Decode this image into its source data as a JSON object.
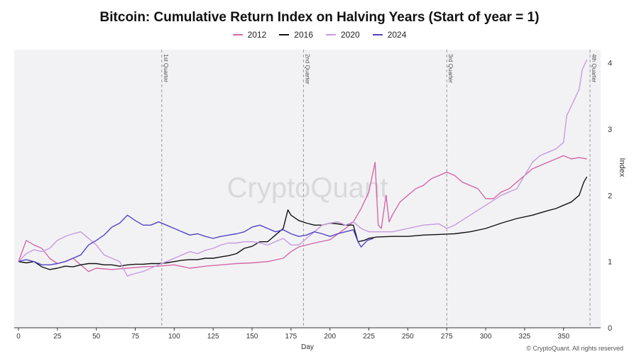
{
  "chart_data": {
    "type": "line",
    "title": "Bitcoin: Cumulative Return Index on Halving Years (Start of year = 1)",
    "xlabel": "Day",
    "ylabel": "Index",
    "xlim": [
      0,
      372
    ],
    "ylim": [
      0,
      4.2
    ],
    "x_ticks": [
      "0",
      "25",
      "50",
      "75",
      "100",
      "125",
      "150",
      "175",
      "200",
      "225",
      "250",
      "275",
      "300",
      "325",
      "350"
    ],
    "y_ticks": [
      "0",
      "1",
      "2",
      "3",
      "4"
    ],
    "legend_position": "top-center",
    "watermark": "CryptoQuant",
    "copyright": "© CryptoQuant. All rights reserved",
    "annotations": [
      {
        "label": "1st Quarter",
        "x": 92
      },
      {
        "label": "2nd Quarter",
        "x": 183
      },
      {
        "label": "3rd Quarter",
        "x": 275
      },
      {
        "label": "4th Quarter",
        "x": 367
      }
    ],
    "series": [
      {
        "name": "2012",
        "color": "#d36aa8",
        "points": [
          [
            0,
            1.0
          ],
          [
            5,
            1.32
          ],
          [
            10,
            1.25
          ],
          [
            15,
            1.2
          ],
          [
            20,
            1.05
          ],
          [
            25,
            0.97
          ],
          [
            30,
            1.0
          ],
          [
            35,
            1.05
          ],
          [
            40,
            0.95
          ],
          [
            45,
            0.85
          ],
          [
            50,
            0.9
          ],
          [
            60,
            0.88
          ],
          [
            70,
            0.9
          ],
          [
            80,
            0.92
          ],
          [
            90,
            0.93
          ],
          [
            100,
            0.95
          ],
          [
            110,
            0.9
          ],
          [
            120,
            0.93
          ],
          [
            130,
            0.95
          ],
          [
            140,
            0.97
          ],
          [
            150,
            0.98
          ],
          [
            160,
            1.0
          ],
          [
            170,
            1.05
          ],
          [
            175,
            1.15
          ],
          [
            180,
            1.22
          ],
          [
            190,
            1.28
          ],
          [
            200,
            1.33
          ],
          [
            210,
            1.5
          ],
          [
            215,
            1.6
          ],
          [
            220,
            1.8
          ],
          [
            225,
            2.05
          ],
          [
            229,
            2.5
          ],
          [
            231,
            1.55
          ],
          [
            233,
            1.5
          ],
          [
            236,
            2.0
          ],
          [
            238,
            1.6
          ],
          [
            240,
            1.7
          ],
          [
            245,
            1.9
          ],
          [
            250,
            2.0
          ],
          [
            255,
            2.1
          ],
          [
            260,
            2.15
          ],
          [
            265,
            2.25
          ],
          [
            270,
            2.3
          ],
          [
            275,
            2.35
          ],
          [
            280,
            2.3
          ],
          [
            285,
            2.2
          ],
          [
            290,
            2.15
          ],
          [
            295,
            2.1
          ],
          [
            300,
            1.95
          ],
          [
            305,
            1.95
          ],
          [
            310,
            2.05
          ],
          [
            315,
            2.1
          ],
          [
            320,
            2.2
          ],
          [
            325,
            2.3
          ],
          [
            330,
            2.4
          ],
          [
            335,
            2.45
          ],
          [
            340,
            2.5
          ],
          [
            345,
            2.55
          ],
          [
            350,
            2.6
          ],
          [
            355,
            2.55
          ],
          [
            360,
            2.57
          ],
          [
            365,
            2.55
          ]
        ]
      },
      {
        "name": "2016",
        "color": "#111111",
        "points": [
          [
            0,
            1.0
          ],
          [
            5,
            0.98
          ],
          [
            10,
            1.0
          ],
          [
            15,
            0.92
          ],
          [
            20,
            0.88
          ],
          [
            25,
            0.9
          ],
          [
            30,
            0.93
          ],
          [
            35,
            0.92
          ],
          [
            40,
            0.95
          ],
          [
            45,
            0.97
          ],
          [
            50,
            0.97
          ],
          [
            55,
            0.95
          ],
          [
            60,
            0.95
          ],
          [
            65,
            0.93
          ],
          [
            70,
            0.95
          ],
          [
            75,
            0.96
          ],
          [
            80,
            0.96
          ],
          [
            85,
            0.97
          ],
          [
            90,
            0.97
          ],
          [
            95,
            0.98
          ],
          [
            100,
            1.0
          ],
          [
            105,
            1.02
          ],
          [
            110,
            1.03
          ],
          [
            115,
            1.03
          ],
          [
            120,
            1.05
          ],
          [
            125,
            1.05
          ],
          [
            130,
            1.07
          ],
          [
            135,
            1.09
          ],
          [
            140,
            1.12
          ],
          [
            145,
            1.2
          ],
          [
            150,
            1.23
          ],
          [
            155,
            1.3
          ],
          [
            160,
            1.3
          ],
          [
            165,
            1.4
          ],
          [
            170,
            1.5
          ],
          [
            173,
            1.78
          ],
          [
            175,
            1.7
          ],
          [
            180,
            1.62
          ],
          [
            185,
            1.58
          ],
          [
            190,
            1.55
          ],
          [
            195,
            1.55
          ],
          [
            200,
            1.58
          ],
          [
            205,
            1.57
          ],
          [
            210,
            1.55
          ],
          [
            215,
            1.55
          ],
          [
            218,
            1.3
          ],
          [
            222,
            1.32
          ],
          [
            225,
            1.35
          ],
          [
            230,
            1.37
          ],
          [
            240,
            1.38
          ],
          [
            250,
            1.38
          ],
          [
            260,
            1.4
          ],
          [
            270,
            1.41
          ],
          [
            280,
            1.42
          ],
          [
            290,
            1.45
          ],
          [
            300,
            1.5
          ],
          [
            310,
            1.58
          ],
          [
            320,
            1.65
          ],
          [
            330,
            1.7
          ],
          [
            340,
            1.77
          ],
          [
            345,
            1.8
          ],
          [
            350,
            1.85
          ],
          [
            355,
            1.9
          ],
          [
            360,
            2.0
          ],
          [
            363,
            2.2
          ],
          [
            365,
            2.28
          ]
        ]
      },
      {
        "name": "2020",
        "color": "#c79be0",
        "points": [
          [
            0,
            1.0
          ],
          [
            5,
            1.12
          ],
          [
            10,
            1.18
          ],
          [
            15,
            1.15
          ],
          [
            20,
            1.2
          ],
          [
            25,
            1.32
          ],
          [
            30,
            1.38
          ],
          [
            35,
            1.42
          ],
          [
            40,
            1.45
          ],
          [
            45,
            1.35
          ],
          [
            50,
            1.25
          ],
          [
            55,
            1.1
          ],
          [
            60,
            1.05
          ],
          [
            65,
            1.0
          ],
          [
            70,
            0.78
          ],
          [
            72,
            0.8
          ],
          [
            75,
            0.82
          ],
          [
            80,
            0.85
          ],
          [
            85,
            0.9
          ],
          [
            90,
            0.95
          ],
          [
            95,
            1.0
          ],
          [
            100,
            1.05
          ],
          [
            105,
            1.1
          ],
          [
            110,
            1.15
          ],
          [
            115,
            1.12
          ],
          [
            120,
            1.17
          ],
          [
            125,
            1.2
          ],
          [
            130,
            1.25
          ],
          [
            135,
            1.28
          ],
          [
            140,
            1.28
          ],
          [
            145,
            1.3
          ],
          [
            150,
            1.3
          ],
          [
            155,
            1.28
          ],
          [
            160,
            1.25
          ],
          [
            165,
            1.3
          ],
          [
            170,
            1.35
          ],
          [
            175,
            1.25
          ],
          [
            180,
            1.25
          ],
          [
            185,
            1.35
          ],
          [
            190,
            1.45
          ],
          [
            195,
            1.55
          ],
          [
            200,
            1.58
          ],
          [
            205,
            1.6
          ],
          [
            210,
            1.55
          ],
          [
            215,
            1.6
          ],
          [
            220,
            1.5
          ],
          [
            225,
            1.45
          ],
          [
            230,
            1.45
          ],
          [
            240,
            1.45
          ],
          [
            250,
            1.5
          ],
          [
            260,
            1.55
          ],
          [
            270,
            1.57
          ],
          [
            275,
            1.5
          ],
          [
            280,
            1.55
          ],
          [
            290,
            1.7
          ],
          [
            300,
            1.85
          ],
          [
            310,
            2.0
          ],
          [
            320,
            2.1
          ],
          [
            325,
            2.3
          ],
          [
            330,
            2.5
          ],
          [
            335,
            2.6
          ],
          [
            340,
            2.65
          ],
          [
            345,
            2.7
          ],
          [
            350,
            2.8
          ],
          [
            352,
            3.2
          ],
          [
            355,
            3.35
          ],
          [
            360,
            3.6
          ],
          [
            362,
            3.9
          ],
          [
            365,
            4.05
          ]
        ]
      },
      {
        "name": "2024",
        "color": "#5145c4",
        "points": [
          [
            0,
            1.0
          ],
          [
            5,
            1.03
          ],
          [
            10,
            1.0
          ],
          [
            15,
            0.95
          ],
          [
            20,
            0.95
          ],
          [
            25,
            0.97
          ],
          [
            30,
            1.0
          ],
          [
            35,
            1.05
          ],
          [
            40,
            1.1
          ],
          [
            45,
            1.25
          ],
          [
            50,
            1.32
          ],
          [
            55,
            1.4
          ],
          [
            60,
            1.52
          ],
          [
            65,
            1.58
          ],
          [
            70,
            1.7
          ],
          [
            75,
            1.62
          ],
          [
            80,
            1.55
          ],
          [
            85,
            1.55
          ],
          [
            90,
            1.6
          ],
          [
            95,
            1.55
          ],
          [
            100,
            1.5
          ],
          [
            105,
            1.45
          ],
          [
            110,
            1.4
          ],
          [
            115,
            1.42
          ],
          [
            120,
            1.38
          ],
          [
            125,
            1.35
          ],
          [
            130,
            1.38
          ],
          [
            135,
            1.4
          ],
          [
            140,
            1.42
          ],
          [
            145,
            1.45
          ],
          [
            150,
            1.52
          ],
          [
            155,
            1.55
          ],
          [
            160,
            1.5
          ],
          [
            165,
            1.45
          ],
          [
            170,
            1.48
          ],
          [
            175,
            1.42
          ],
          [
            180,
            1.38
          ],
          [
            185,
            1.4
          ],
          [
            190,
            1.45
          ],
          [
            195,
            1.42
          ],
          [
            200,
            1.38
          ],
          [
            205,
            1.42
          ],
          [
            210,
            1.45
          ],
          [
            215,
            1.48
          ],
          [
            218,
            1.3
          ],
          [
            220,
            1.22
          ],
          [
            224,
            1.32
          ],
          [
            228,
            1.35
          ]
        ]
      }
    ]
  }
}
